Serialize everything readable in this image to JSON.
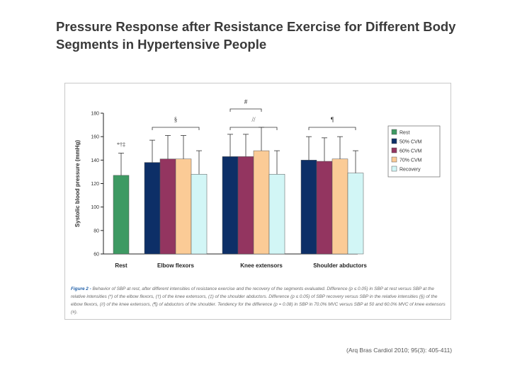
{
  "slide": {
    "title_line1": "Pressure Response after Resistance Exercise for Different Body",
    "title_line2": "Segments in Hypertensive People"
  },
  "chart_data": {
    "type": "bar",
    "ylabel": "Systolic blood pressure (mmHg)",
    "ylim": [
      60,
      180
    ],
    "yticks": [
      60,
      80,
      100,
      120,
      140,
      160,
      180
    ],
    "grid": false,
    "legend_position": "right",
    "groups": [
      {
        "label": "Rest",
        "bars": [
          {
            "series": "Rest",
            "value": 127,
            "error": 19
          }
        ],
        "annotation": "*†‡"
      },
      {
        "label": "Elbow flexors",
        "bars": [
          {
            "series": "50% CVM",
            "value": 138,
            "error": 19
          },
          {
            "series": "60% CVM",
            "value": 141,
            "error": 20
          },
          {
            "series": "70% CVM",
            "value": 141,
            "error": 20
          },
          {
            "series": "Recovery",
            "value": 128,
            "error": 20
          }
        ],
        "annotation": "§"
      },
      {
        "label": "Knee extensors",
        "bars": [
          {
            "series": "50% CVM",
            "value": 143,
            "error": 19
          },
          {
            "series": "60% CVM",
            "value": 143,
            "error": 19
          },
          {
            "series": "70% CVM",
            "value": 148,
            "error": 20
          },
          {
            "series": "Recovery",
            "value": 128,
            "error": 20
          }
        ],
        "annotation": "//",
        "annotation_top": "#"
      },
      {
        "label": "Shoulder abductors",
        "bars": [
          {
            "series": "50% CVM",
            "value": 140,
            "error": 20
          },
          {
            "series": "60% CVM",
            "value": 139,
            "error": 20
          },
          {
            "series": "70% CVM",
            "value": 141,
            "error": 19
          },
          {
            "series": "Recovery",
            "value": 129,
            "error": 19
          }
        ],
        "annotation": "¶"
      }
    ],
    "series": [
      {
        "name": "Rest",
        "color": "#3e9a63"
      },
      {
        "name": "50% CVM",
        "color": "#0d2f67"
      },
      {
        "name": "60% CVM",
        "color": "#933560"
      },
      {
        "name": "70% CVM",
        "color": "#fbcb96"
      },
      {
        "name": "Recovery",
        "color": "#d2f6f6"
      }
    ]
  },
  "caption": {
    "lead": "Figure 2 - ",
    "text": "Behavior of SBP at rest, after different intensities of resistance exercise and the recovery of the segments evaluated. Difference (p ≤ 0.05) in SBP at rest versus SBP at the relative intensities (*) of the elbow flexors, (†) of the knee extensors, (‡) of the shoulder abductors. Difference (p ≤ 0.05) of SBP recovery versus SBP in the relative intensities (§) of the elbow flexors, (//) of the knee extensors, (¶) of abductors of the shoulder. Tendency for the difference (p = 0.08) in SBP in 70.0% MVC versus SBP at 50 and 60.0% MVC of knee extensors (#)."
  },
  "citation": "(Arq Bras Cardiol 2010; 95(3): 405-411)"
}
